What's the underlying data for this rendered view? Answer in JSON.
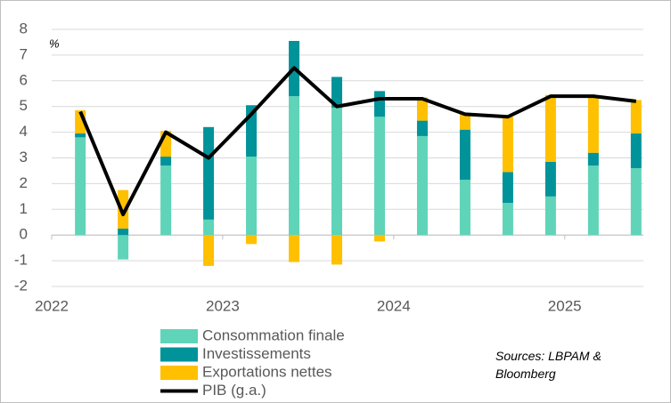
{
  "chart_data": {
    "type": "stacked-bar-line",
    "annotation": "%",
    "source": "Sources: LBPAM & Bloomberg",
    "categories": [
      null,
      null,
      null,
      null,
      null,
      null,
      null,
      null,
      null,
      null,
      null,
      null,
      null,
      null
    ],
    "xlim": [
      -0.67,
      13.17
    ],
    "xticks": [
      {
        "value": -0.67,
        "label": "2022"
      },
      {
        "value": 3.33,
        "label": "2023"
      },
      {
        "value": 7.33,
        "label": "2024"
      },
      {
        "value": 11.33,
        "label": "2025"
      }
    ],
    "ylim": [
      -2,
      8
    ],
    "yticks": [
      -2,
      -1,
      0,
      1,
      2,
      3,
      4,
      5,
      6,
      7,
      8
    ],
    "grid": true,
    "legend": "bottom",
    "series": [
      {
        "name": "Consommation finale",
        "kind": "bar",
        "color": "#5fd4b8",
        "values": [
          3.8,
          -0.95,
          2.7,
          0.6,
          3.05,
          5.4,
          4.95,
          4.6,
          3.85,
          2.15,
          1.25,
          1.5,
          2.7,
          2.6
        ]
      },
      {
        "name": "Investissements",
        "kind": "bar",
        "color": "#00939a",
        "values": [
          0.15,
          0.25,
          0.35,
          3.6,
          2.0,
          2.15,
          1.2,
          1.0,
          0.6,
          1.95,
          1.2,
          1.35,
          0.5,
          1.35
        ]
      },
      {
        "name": "Exportations nettes",
        "kind": "bar",
        "color": "#ffc000",
        "values": [
          0.9,
          1.5,
          1.0,
          -1.2,
          -0.35,
          -1.05,
          -1.15,
          -0.25,
          0.9,
          0.6,
          2.15,
          2.6,
          2.2,
          1.3
        ]
      },
      {
        "name": "PIB (g.a.)",
        "kind": "line",
        "color": "#000000",
        "values": [
          4.8,
          0.8,
          4.0,
          3.0,
          4.7,
          6.5,
          5.0,
          5.3,
          5.3,
          4.7,
          4.6,
          5.4,
          5.4,
          5.2
        ]
      }
    ]
  }
}
